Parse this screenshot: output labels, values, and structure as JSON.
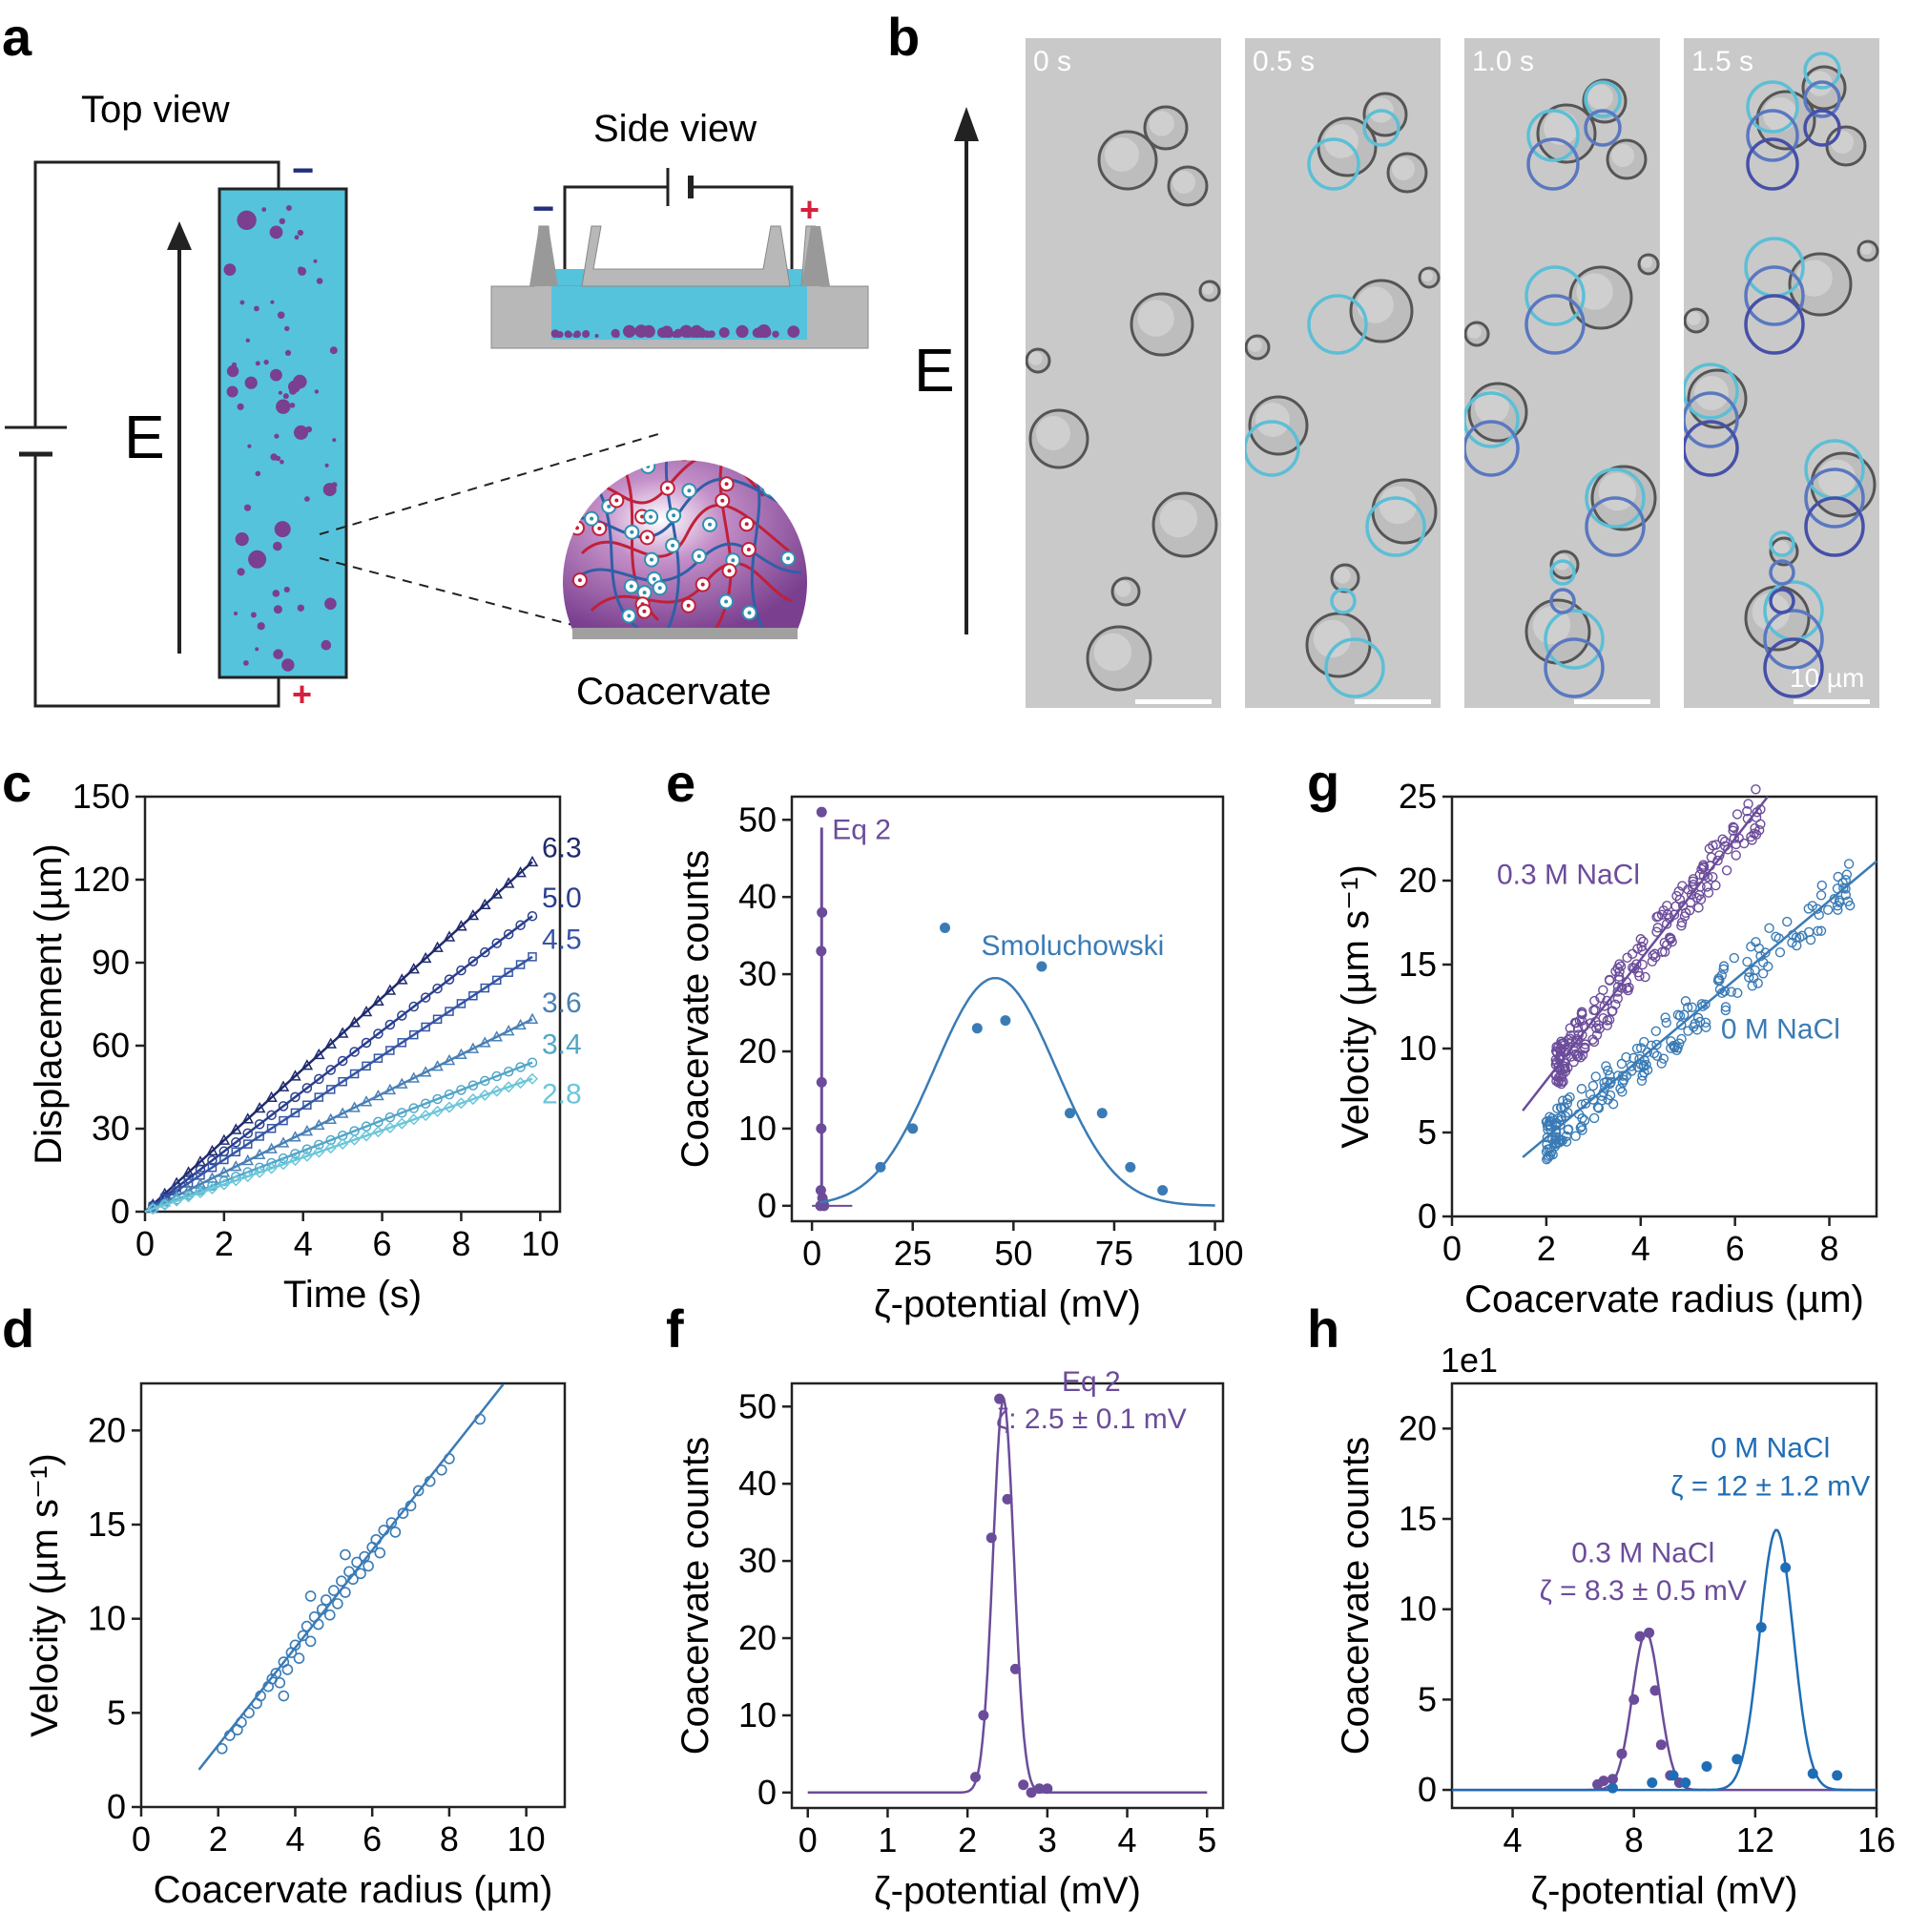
{
  "panels": {
    "a": {
      "label": "a",
      "top_view": "Top view",
      "side_view": "Side view",
      "field": "E",
      "coacervate": "Coacervate",
      "minus": "−",
      "plus": "+"
    },
    "b": {
      "label": "b",
      "field": "E",
      "frames": [
        "0 s",
        "0.5 s",
        "1.0 s",
        "1.5 s"
      ],
      "scale_bar": "10 µm"
    },
    "c": {
      "label": "c"
    },
    "d": {
      "label": "d"
    },
    "e": {
      "label": "e"
    },
    "f": {
      "label": "f"
    },
    "g": {
      "label": "g"
    },
    "h": {
      "label": "h"
    }
  },
  "colors": {
    "purple": "#6b4c9a",
    "blue": "#3a7bb5",
    "navy": "#20307a",
    "light_blue": "#5bbfd6",
    "chamber": "#55c3dc",
    "droplet": "#7a3f8f",
    "red": "#d4213d"
  },
  "chart_data": [
    {
      "id": "c",
      "type": "line",
      "title": "",
      "xlabel": "Time (s)",
      "ylabel": "Displacement (µm)",
      "xlim": [
        0,
        10.5
      ],
      "ylim": [
        0,
        150
      ],
      "xticks": [
        0,
        2,
        4,
        6,
        8,
        10
      ],
      "yticks": [
        0,
        30,
        60,
        90,
        120,
        150
      ],
      "series": [
        {
          "name": "6.3",
          "label": "6.3",
          "slope": 12.9,
          "x_end": 9.8,
          "marker": "triangle",
          "color": "#1f2a6e"
        },
        {
          "name": "5.0",
          "label": "5.0",
          "slope": 10.9,
          "x_end": 9.8,
          "marker": "circle",
          "color": "#2a3f8f"
        },
        {
          "name": "4.5",
          "label": "4.5",
          "slope": 9.4,
          "x_end": 9.8,
          "marker": "square",
          "color": "#3556a6"
        },
        {
          "name": "3.6",
          "label": "3.6",
          "slope": 7.1,
          "x_end": 9.8,
          "marker": "triangle",
          "color": "#4a80b5"
        },
        {
          "name": "3.4",
          "label": "3.4",
          "slope": 5.5,
          "x_end": 9.8,
          "marker": "circle",
          "color": "#52a6c8"
        },
        {
          "name": "2.8",
          "label": "2.8",
          "slope": 4.9,
          "x_end": 9.8,
          "marker": "diamond",
          "color": "#6cc6d9"
        }
      ]
    },
    {
      "id": "d",
      "type": "scatter",
      "xlabel": "Coacervate radius (µm)",
      "ylabel": "Velocity (µm s⁻¹)",
      "xlim": [
        0,
        11
      ],
      "ylim": [
        0,
        22.5
      ],
      "xticks": [
        0,
        2,
        4,
        6,
        8,
        10
      ],
      "yticks": [
        0,
        5,
        10,
        15,
        20
      ],
      "fit": {
        "slope": 2.59,
        "intercept": -1.9,
        "x_range": [
          1.5,
          9.4
        ]
      },
      "points": [
        [
          2.1,
          3.1
        ],
        [
          2.3,
          3.8
        ],
        [
          2.5,
          4.1
        ],
        [
          2.6,
          4.5
        ],
        [
          2.8,
          5.0
        ],
        [
          3.0,
          5.5
        ],
        [
          3.1,
          5.9
        ],
        [
          3.3,
          6.4
        ],
        [
          3.4,
          6.8
        ],
        [
          3.5,
          7.1
        ],
        [
          3.6,
          6.6
        ],
        [
          3.7,
          7.7
        ],
        [
          3.8,
          7.3
        ],
        [
          3.9,
          8.2
        ],
        [
          4.0,
          8.6
        ],
        [
          4.1,
          7.9
        ],
        [
          4.2,
          9.1
        ],
        [
          4.3,
          9.6
        ],
        [
          4.4,
          8.8
        ],
        [
          4.5,
          10.1
        ],
        [
          4.6,
          9.7
        ],
        [
          4.7,
          10.5
        ],
        [
          4.8,
          11.0
        ],
        [
          4.9,
          10.2
        ],
        [
          5.0,
          11.5
        ],
        [
          5.1,
          10.8
        ],
        [
          5.2,
          12.0
        ],
        [
          5.3,
          11.4
        ],
        [
          5.4,
          12.5
        ],
        [
          5.5,
          12.1
        ],
        [
          5.6,
          13.0
        ],
        [
          5.7,
          12.4
        ],
        [
          5.8,
          13.3
        ],
        [
          5.9,
          12.8
        ],
        [
          6.0,
          13.8
        ],
        [
          6.1,
          14.2
        ],
        [
          6.2,
          13.5
        ],
        [
          6.3,
          14.7
        ],
        [
          6.5,
          15.1
        ],
        [
          6.6,
          14.6
        ],
        [
          6.8,
          15.6
        ],
        [
          7.0,
          16.0
        ],
        [
          7.2,
          16.8
        ],
        [
          7.5,
          17.3
        ],
        [
          7.8,
          17.9
        ],
        [
          8.0,
          18.5
        ],
        [
          8.8,
          20.6
        ],
        [
          3.7,
          5.9
        ],
        [
          4.4,
          11.2
        ],
        [
          5.3,
          13.4
        ]
      ]
    },
    {
      "id": "e",
      "type": "scatter",
      "xlabel": "ζ-potential (mV)",
      "ylabel": "Coacervate counts",
      "xlim": [
        -5,
        102
      ],
      "ylim": [
        -2,
        53
      ],
      "xticks": [
        0,
        25,
        50,
        75,
        100
      ],
      "yticks": [
        0,
        10,
        20,
        30,
        40,
        50
      ],
      "annotations": [
        "Eq 2",
        "Smoluchowski"
      ],
      "series": [
        {
          "name": "Eq 2",
          "color": "#6b4c9a",
          "points": [
            [
              2.4,
              51
            ],
            [
              2.5,
              38
            ],
            [
              2.3,
              33
            ],
            [
              2.4,
              16
            ],
            [
              2.3,
              10
            ],
            [
              2.2,
              2
            ],
            [
              2.6,
              1
            ],
            [
              2.8,
              0.5
            ],
            [
              3.0,
              0
            ],
            [
              2.1,
              0
            ]
          ]
        },
        {
          "name": "Smoluchowski",
          "color": "#3a7bb5",
          "points": [
            [
              17,
              5
            ],
            [
              25,
              10
            ],
            [
              33,
              36
            ],
            [
              41,
              23
            ],
            [
              48,
              24
            ],
            [
              57,
              31
            ],
            [
              64,
              12
            ],
            [
              72,
              12
            ],
            [
              79,
              5
            ],
            [
              87,
              2
            ]
          ],
          "gauss": {
            "a": 29.5,
            "mu": 45.5,
            "sigma": 15,
            "x_range": [
              2,
              100
            ]
          }
        }
      ]
    },
    {
      "id": "f",
      "type": "scatter",
      "xlabel": "ζ-potential (mV)",
      "ylabel": "Coacervate counts",
      "xlim": [
        -0.2,
        5.2
      ],
      "ylim": [
        -2,
        53
      ],
      "xticks": [
        0,
        1,
        2,
        3,
        4,
        5
      ],
      "yticks": [
        0,
        10,
        20,
        30,
        40,
        50
      ],
      "annotations": [
        "Eq 2",
        "ζ: 2.5 ± 0.1 mV"
      ],
      "points": [
        [
          2.1,
          2
        ],
        [
          2.2,
          10
        ],
        [
          2.3,
          33
        ],
        [
          2.4,
          51
        ],
        [
          2.5,
          38
        ],
        [
          2.6,
          16
        ],
        [
          2.7,
          1
        ],
        [
          2.8,
          0
        ],
        [
          2.9,
          0.5
        ],
        [
          3.0,
          0.5
        ]
      ],
      "gauss": {
        "a": 51,
        "mu": 2.45,
        "sigma": 0.13,
        "x_range": [
          0,
          5
        ]
      }
    },
    {
      "id": "g",
      "type": "scatter",
      "xlabel": "Coacervate radius (µm)",
      "ylabel": "Velocity (µm s⁻¹)",
      "xlim": [
        0,
        9
      ],
      "ylim": [
        0,
        25
      ],
      "xticks": [
        0,
        2,
        4,
        6,
        8
      ],
      "yticks": [
        0,
        5,
        10,
        15,
        20,
        25
      ],
      "series": [
        {
          "name": "0.3 M NaCl",
          "label": "0.3 M NaCl",
          "color": "#6b4c9a",
          "fit": {
            "slope": 3.6,
            "intercept": 0.9,
            "x_range": [
              1.5,
              6.7
            ]
          },
          "x_range": [
            2.2,
            6.6
          ]
        },
        {
          "name": "0 M NaCl",
          "label": "0 M NaCl",
          "color": "#3a7bb5",
          "fit": {
            "slope": 2.35,
            "intercept": 0.0,
            "x_range": [
              1.5,
              9.0
            ]
          },
          "x_range": [
            2.0,
            8.5
          ]
        }
      ]
    },
    {
      "id": "h",
      "type": "scatter",
      "xlabel": "ζ-potential (mV)",
      "ylabel": "Coacervate counts",
      "axis_multiplier": "1e1",
      "xlim": [
        2,
        16
      ],
      "ylim": [
        -1,
        22.5
      ],
      "xticks": [
        4,
        8,
        12,
        16
      ],
      "yticks": [
        0,
        5,
        10,
        15,
        20
      ],
      "series": [
        {
          "name": "0.3 M NaCl",
          "label": "0.3 M NaCl",
          "annot": "ζ = 8.3 ± 0.5 mV",
          "color": "#6b4c9a",
          "points": [
            [
              6.8,
              0.3
            ],
            [
              7.0,
              0.5
            ],
            [
              7.3,
              0.6
            ],
            [
              7.6,
              2.0
            ],
            [
              8.0,
              5.0
            ],
            [
              8.2,
              8.5
            ],
            [
              8.5,
              8.7
            ],
            [
              8.7,
              5.5
            ],
            [
              8.9,
              2.5
            ],
            [
              9.2,
              0.8
            ],
            [
              9.5,
              0.4
            ]
          ],
          "gauss": {
            "a": 8.7,
            "mu": 8.4,
            "sigma": 0.45,
            "x_range": [
              2,
              16
            ]
          }
        },
        {
          "name": "0 M NaCl",
          "label": "0 M NaCl",
          "annot": "ζ = 12 ± 1.2 mV",
          "color": "#1f6db5",
          "points": [
            [
              7.3,
              0.1
            ],
            [
              8.6,
              0.4
            ],
            [
              9.3,
              0.8
            ],
            [
              9.7,
              0.4
            ],
            [
              10.4,
              1.3
            ],
            [
              11.4,
              1.7
            ],
            [
              12.2,
              9.0
            ],
            [
              13.0,
              12.3
            ],
            [
              13.9,
              0.9
            ],
            [
              14.7,
              0.8
            ]
          ],
          "gauss": {
            "a": 14.4,
            "mu": 12.7,
            "sigma": 0.55,
            "x_range": [
              2,
              16
            ]
          }
        }
      ]
    }
  ]
}
